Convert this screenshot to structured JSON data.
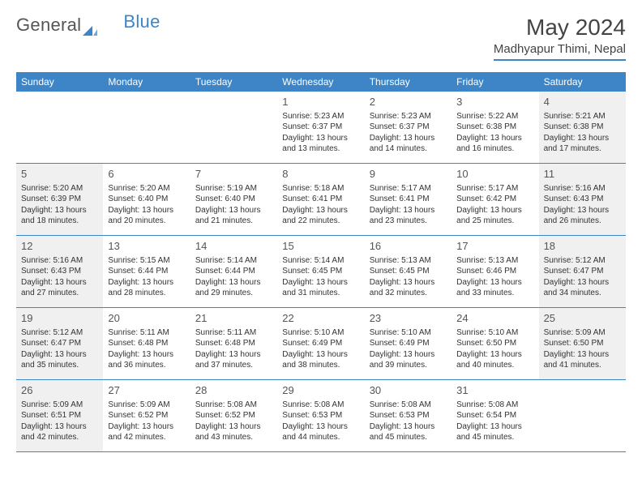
{
  "brand": {
    "part1": "General",
    "part2": "Blue"
  },
  "title": "May 2024",
  "location": "Madhyapur Thimi, Nepal",
  "colors": {
    "accent": "#3d85c6",
    "shade": "#f0f0f0",
    "text": "#333333",
    "bg": "#ffffff"
  },
  "weekdays": [
    "Sunday",
    "Monday",
    "Tuesday",
    "Wednesday",
    "Thursday",
    "Friday",
    "Saturday"
  ],
  "weeks": [
    [
      {
        "n": "",
        "sr": "",
        "ss": "",
        "dl": ""
      },
      {
        "n": "",
        "sr": "",
        "ss": "",
        "dl": ""
      },
      {
        "n": "",
        "sr": "",
        "ss": "",
        "dl": ""
      },
      {
        "n": "1",
        "sr": "5:23 AM",
        "ss": "6:37 PM",
        "dl": "13 hours and 13 minutes."
      },
      {
        "n": "2",
        "sr": "5:23 AM",
        "ss": "6:37 PM",
        "dl": "13 hours and 14 minutes."
      },
      {
        "n": "3",
        "sr": "5:22 AM",
        "ss": "6:38 PM",
        "dl": "13 hours and 16 minutes."
      },
      {
        "n": "4",
        "sr": "5:21 AM",
        "ss": "6:38 PM",
        "dl": "13 hours and 17 minutes.",
        "shaded": true
      }
    ],
    [
      {
        "n": "5",
        "sr": "5:20 AM",
        "ss": "6:39 PM",
        "dl": "13 hours and 18 minutes.",
        "shaded": true
      },
      {
        "n": "6",
        "sr": "5:20 AM",
        "ss": "6:40 PM",
        "dl": "13 hours and 20 minutes."
      },
      {
        "n": "7",
        "sr": "5:19 AM",
        "ss": "6:40 PM",
        "dl": "13 hours and 21 minutes."
      },
      {
        "n": "8",
        "sr": "5:18 AM",
        "ss": "6:41 PM",
        "dl": "13 hours and 22 minutes."
      },
      {
        "n": "9",
        "sr": "5:17 AM",
        "ss": "6:41 PM",
        "dl": "13 hours and 23 minutes."
      },
      {
        "n": "10",
        "sr": "5:17 AM",
        "ss": "6:42 PM",
        "dl": "13 hours and 25 minutes."
      },
      {
        "n": "11",
        "sr": "5:16 AM",
        "ss": "6:43 PM",
        "dl": "13 hours and 26 minutes.",
        "shaded": true
      }
    ],
    [
      {
        "n": "12",
        "sr": "5:16 AM",
        "ss": "6:43 PM",
        "dl": "13 hours and 27 minutes.",
        "shaded": true
      },
      {
        "n": "13",
        "sr": "5:15 AM",
        "ss": "6:44 PM",
        "dl": "13 hours and 28 minutes."
      },
      {
        "n": "14",
        "sr": "5:14 AM",
        "ss": "6:44 PM",
        "dl": "13 hours and 29 minutes."
      },
      {
        "n": "15",
        "sr": "5:14 AM",
        "ss": "6:45 PM",
        "dl": "13 hours and 31 minutes."
      },
      {
        "n": "16",
        "sr": "5:13 AM",
        "ss": "6:45 PM",
        "dl": "13 hours and 32 minutes."
      },
      {
        "n": "17",
        "sr": "5:13 AM",
        "ss": "6:46 PM",
        "dl": "13 hours and 33 minutes."
      },
      {
        "n": "18",
        "sr": "5:12 AM",
        "ss": "6:47 PM",
        "dl": "13 hours and 34 minutes.",
        "shaded": true
      }
    ],
    [
      {
        "n": "19",
        "sr": "5:12 AM",
        "ss": "6:47 PM",
        "dl": "13 hours and 35 minutes.",
        "shaded": true
      },
      {
        "n": "20",
        "sr": "5:11 AM",
        "ss": "6:48 PM",
        "dl": "13 hours and 36 minutes."
      },
      {
        "n": "21",
        "sr": "5:11 AM",
        "ss": "6:48 PM",
        "dl": "13 hours and 37 minutes."
      },
      {
        "n": "22",
        "sr": "5:10 AM",
        "ss": "6:49 PM",
        "dl": "13 hours and 38 minutes."
      },
      {
        "n": "23",
        "sr": "5:10 AM",
        "ss": "6:49 PM",
        "dl": "13 hours and 39 minutes."
      },
      {
        "n": "24",
        "sr": "5:10 AM",
        "ss": "6:50 PM",
        "dl": "13 hours and 40 minutes."
      },
      {
        "n": "25",
        "sr": "5:09 AM",
        "ss": "6:50 PM",
        "dl": "13 hours and 41 minutes.",
        "shaded": true
      }
    ],
    [
      {
        "n": "26",
        "sr": "5:09 AM",
        "ss": "6:51 PM",
        "dl": "13 hours and 42 minutes.",
        "shaded": true
      },
      {
        "n": "27",
        "sr": "5:09 AM",
        "ss": "6:52 PM",
        "dl": "13 hours and 42 minutes."
      },
      {
        "n": "28",
        "sr": "5:08 AM",
        "ss": "6:52 PM",
        "dl": "13 hours and 43 minutes."
      },
      {
        "n": "29",
        "sr": "5:08 AM",
        "ss": "6:53 PM",
        "dl": "13 hours and 44 minutes."
      },
      {
        "n": "30",
        "sr": "5:08 AM",
        "ss": "6:53 PM",
        "dl": "13 hours and 45 minutes."
      },
      {
        "n": "31",
        "sr": "5:08 AM",
        "ss": "6:54 PM",
        "dl": "13 hours and 45 minutes."
      },
      {
        "n": "",
        "sr": "",
        "ss": "",
        "dl": ""
      }
    ]
  ],
  "labels": {
    "sunrise": "Sunrise:",
    "sunset": "Sunset:",
    "daylight": "Daylight:"
  }
}
